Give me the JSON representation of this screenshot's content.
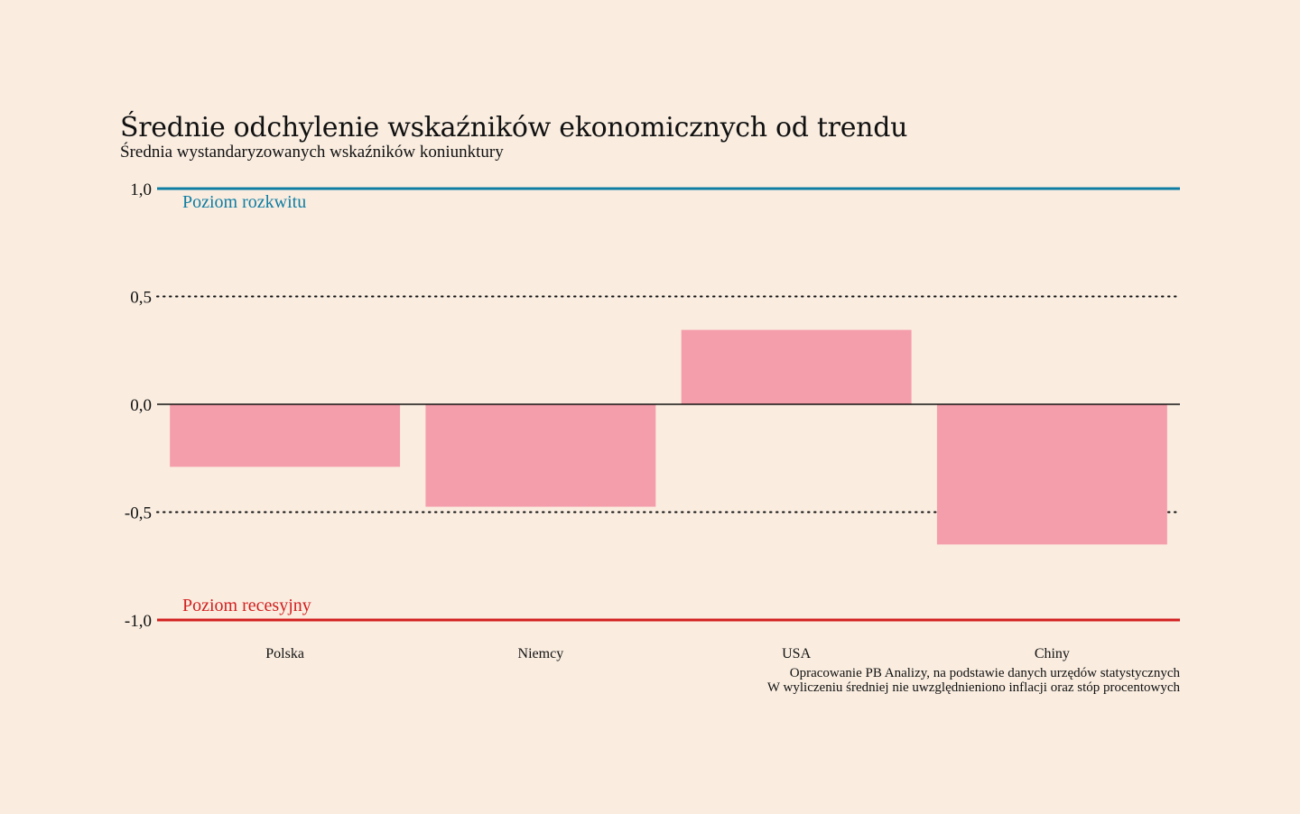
{
  "chart_data": {
    "type": "bar",
    "title": "Średnie odchylenie wskaźników ekonomicznych od trendu",
    "subtitle": "Średnia wystandaryzowanych wskaźników koniunktury",
    "categories": [
      "Polska",
      "Niemcy",
      "USA",
      "Chiny"
    ],
    "values": [
      -0.29,
      -0.475,
      0.345,
      -0.65
    ],
    "ylim": [
      -1.0,
      1.0
    ],
    "yticks": [
      1.0,
      0.5,
      0.0,
      -0.5,
      -1.0
    ],
    "ytick_labels": [
      "1,0",
      "0,5",
      "0,0",
      "-0,5",
      "-1,0"
    ],
    "xlabel": "",
    "ylabel": "",
    "grid": "dotted at ±0.5",
    "bar_color": "#F59EAB",
    "reference_lines": [
      {
        "value": 1.0,
        "label": "Poziom rozkwitu",
        "color": "#0E7DA3"
      },
      {
        "value": -1.0,
        "label": "Poziom recesyjny",
        "color": "#D21F1F"
      }
    ],
    "source_notes": [
      "Opracowanie PB Analizy, na podstawie danych urzędów statystycznych",
      "W wyliczeniu średniej nie uwzględnieniono inflacji oraz stóp procentowych"
    ]
  }
}
